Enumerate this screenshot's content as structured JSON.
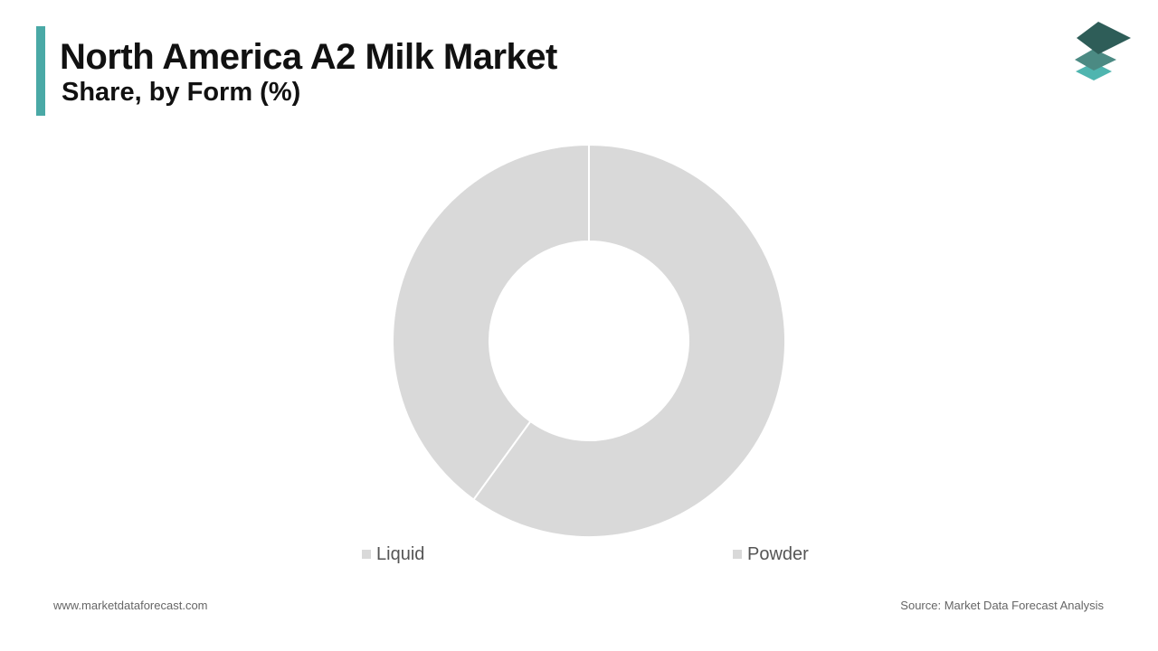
{
  "header": {
    "title": "North America A2 Milk Market",
    "subtitle": "Share, by Form (%)"
  },
  "logo": {
    "icon": "layered-diamonds-logo-icon"
  },
  "colors": {
    "accent": "#4aa9a6",
    "slice": "#d9d9d9",
    "separator": "#ffffff",
    "logo_top": "#2e5d58",
    "logo_middle": "#4b8a83",
    "logo_bottom": "#4fb5af"
  },
  "chart_data": {
    "type": "pie",
    "donut": true,
    "categories": [
      "Liquid",
      "Powder"
    ],
    "values": [
      60,
      40
    ],
    "legend_position": "bottom"
  },
  "footer": {
    "website": "www.marketdataforecast.com",
    "source": "Source: Market Data Forecast Analysis"
  }
}
